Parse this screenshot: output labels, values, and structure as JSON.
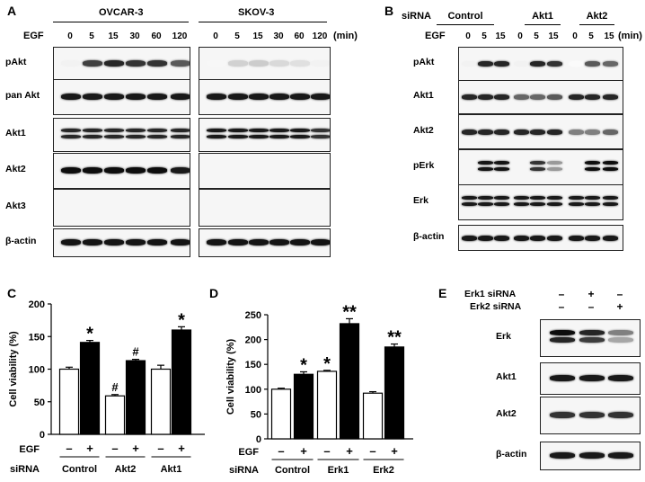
{
  "panelA": {
    "letter": "A",
    "cell_lines": [
      "OVCAR-3",
      "SKOV-3"
    ],
    "egf_label": "EGF",
    "times": [
      "0",
      "5",
      "15",
      "30",
      "60",
      "120"
    ],
    "unit": "(min)",
    "rows": [
      "pAkt",
      "pan Akt",
      "Akt1",
      "Akt2",
      "Akt3",
      "β-actin"
    ]
  },
  "panelB": {
    "letter": "B",
    "sirna_label": "siRNA",
    "groups": [
      "Control",
      "Akt1",
      "Akt2"
    ],
    "egf_label": "EGF",
    "times": [
      "0",
      "5",
      "15"
    ],
    "unit": "(min)",
    "rows": [
      "pAkt",
      "Akt1",
      "Akt2",
      "pErk",
      "Erk",
      "β-actin"
    ]
  },
  "panelE": {
    "letter": "E",
    "conditions": [
      {
        "label": "Erk1 siRNA",
        "signs": [
          "–",
          "+",
          "–"
        ]
      },
      {
        "label": "Erk2 siRNA",
        "signs": [
          "–",
          "–",
          "+"
        ]
      }
    ],
    "rows": [
      "Erk",
      "Akt1",
      "Akt2",
      "β-actin"
    ]
  },
  "chart_data": [
    {
      "panel": "C",
      "type": "bar",
      "ylabel": "Cell viability (%)",
      "ylim": [
        0,
        200
      ],
      "yticks": [
        0,
        50,
        100,
        150,
        200
      ],
      "egf_label": "EGF",
      "sirna_label": "siRNA",
      "egf_signs": [
        "–",
        "+",
        "–",
        "+",
        "–",
        "+"
      ],
      "groups": [
        "Control",
        "Akt2",
        "Akt1"
      ],
      "values": [
        100,
        141,
        59,
        113,
        100,
        160
      ],
      "errors": [
        3,
        3,
        2,
        2,
        6,
        5
      ],
      "fills": [
        "#ffffff",
        "#000000",
        "#ffffff",
        "#000000",
        "#ffffff",
        "#000000"
      ],
      "annotations": [
        "",
        "*",
        "#",
        "#",
        "",
        "*"
      ]
    },
    {
      "panel": "D",
      "type": "bar",
      "ylabel": "Cell viability (%)",
      "ylim": [
        0,
        250
      ],
      "yticks": [
        0,
        50,
        100,
        150,
        200,
        250
      ],
      "egf_label": "EGF",
      "sirna_label": "siRNA",
      "egf_signs": [
        "–",
        "+",
        "–",
        "+",
        "–",
        "+"
      ],
      "groups": [
        "Control",
        "Erk1",
        "Erk2"
      ],
      "values": [
        100,
        130,
        136,
        232,
        92,
        185
      ],
      "errors": [
        2,
        5,
        2,
        10,
        3,
        6
      ],
      "fills": [
        "#ffffff",
        "#000000",
        "#ffffff",
        "#000000",
        "#ffffff",
        "#000000"
      ],
      "annotations": [
        "",
        "*",
        "*",
        "**",
        "",
        "**"
      ]
    }
  ]
}
